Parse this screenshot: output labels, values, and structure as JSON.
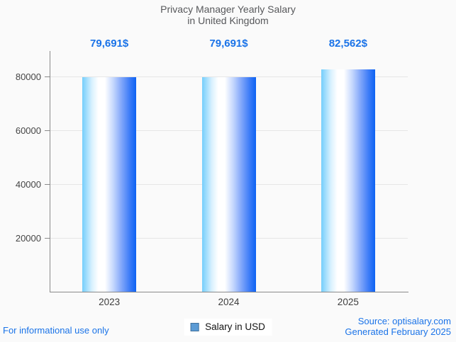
{
  "title": {
    "line1": "Privacy Manager Yearly Salary",
    "line2": "in United Kingdom"
  },
  "chart_data": {
    "type": "bar",
    "title": "Privacy Manager Yearly Salary in United Kingdom",
    "categories": [
      "2023",
      "2024",
      "2025"
    ],
    "values": [
      79691,
      79691,
      82562
    ],
    "value_labels": [
      "79,691$",
      "79,691$",
      "82,562$"
    ],
    "series": [
      {
        "name": "Salary in USD",
        "values": [
          79691,
          79691,
          82562
        ]
      }
    ],
    "xlabel": "",
    "ylabel": "",
    "ylim": [
      0,
      89500
    ],
    "yticks": [
      20000,
      40000,
      60000,
      80000
    ],
    "grid": true,
    "legend_position": "bottom"
  },
  "legend": {
    "label": "Salary in USD",
    "swatch_color": "#5b9bd5",
    "swatch_border": "#41719c"
  },
  "footer": {
    "left": "For informational use only",
    "source": "Source: optisalary.com",
    "generated": "Generated February 2025"
  },
  "colors": {
    "accent_blue": "#1a73e8",
    "title_gray": "#57585b",
    "axis_gray": "#8a8a8a",
    "gridline_gray": "#e6e6e6",
    "bar_gradient": [
      "#74cefc",
      "#d9f1fe",
      "#ffffff",
      "#ffffff",
      "#c3d6fd",
      "#85a9fa",
      "#3d7cf7",
      "#0d63f3"
    ],
    "bar_gradient_stops": [
      0,
      18,
      30,
      42,
      58,
      72,
      88,
      100
    ]
  }
}
